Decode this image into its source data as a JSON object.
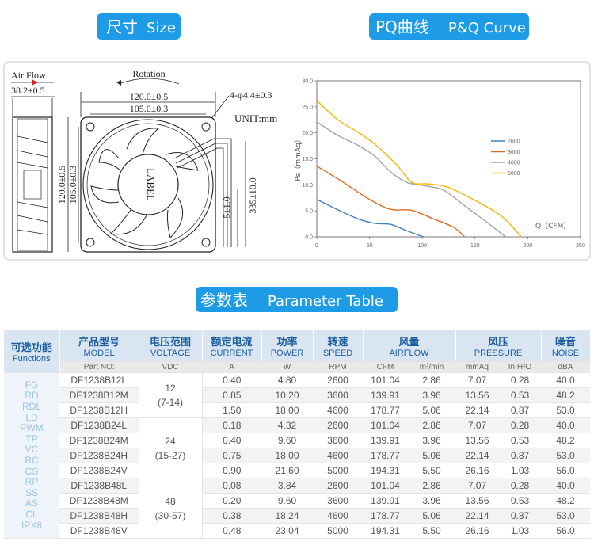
{
  "size_badge": {
    "cn": "尺寸",
    "en": "Size"
  },
  "pq_badge": {
    "cn": "PQ曲线",
    "en": "P&Q Curve"
  },
  "table_badge": {
    "cn": "参数表",
    "en": "Parameter Table"
  },
  "drawing": {
    "air_flow": "Air Flow",
    "depth": "38.2±0.5",
    "rotation": "Rotation",
    "outer_width": "120.0±0.5",
    "hole_width": "105.0±0.3",
    "holes": "4-φ4.4±0.3",
    "unit": "UNIT:mm",
    "outer_height": "120.0±0.5",
    "hole_height": "105.0±0.3",
    "label": "LABEL",
    "wire_tip": "5±1.0",
    "wire_length": "335±10.0"
  },
  "pq_chart": {
    "type": "line",
    "x_label": "Q（CFM）",
    "y_label": "Ps（mmAq）",
    "xlim": [
      0,
      250
    ],
    "ylim": [
      0,
      30
    ],
    "xticks": [
      0,
      50,
      100,
      150,
      200,
      250
    ],
    "yticks": [
      {
        "value": 0,
        "label": "0.0"
      },
      {
        "value": 5,
        "label": "5.0"
      },
      {
        "value": 10,
        "label": "10.0"
      },
      {
        "value": 15,
        "label": "15.0"
      },
      {
        "value": 20,
        "label": "20.0"
      },
      {
        "value": 25,
        "label": "25.0"
      },
      {
        "value": 30,
        "label": "30.0"
      }
    ],
    "series": [
      {
        "name": "2600",
        "color": "#3d7fc4",
        "x": [
          0,
          20,
          40,
          55,
          70,
          85,
          101
        ],
        "values": [
          7.2,
          5.2,
          3.4,
          2.6,
          2.4,
          1.2,
          0
        ]
      },
      {
        "name": "3600",
        "color": "#e0691f",
        "x": [
          0,
          25,
          50,
          70,
          90,
          110,
          130,
          140
        ],
        "values": [
          13.6,
          10.5,
          7.2,
          5.3,
          5.1,
          3.5,
          1.8,
          0
        ]
      },
      {
        "name": "4600",
        "color": "#a3a3a3",
        "x": [
          0,
          20,
          40,
          55,
          70,
          85,
          100,
          120,
          140,
          160,
          179
        ],
        "values": [
          22.1,
          19.5,
          17.5,
          15.5,
          12.5,
          10.5,
          9.9,
          9,
          6,
          3,
          0
        ]
      },
      {
        "name": "5000",
        "color": "#f5b400",
        "x": [
          0,
          20,
          40,
          55,
          75,
          90,
          105,
          125,
          150,
          175,
          194
        ],
        "values": [
          26.2,
          22.5,
          20,
          17.8,
          14,
          10.5,
          10.2,
          9.5,
          7,
          4,
          0
        ]
      }
    ]
  },
  "table": {
    "header": [
      {
        "cn": "可选功能",
        "en": "Functions"
      },
      {
        "cn": "产品型号",
        "en": "MODEL"
      },
      {
        "cn": "电压范围",
        "en": "VOLTAGE"
      },
      {
        "cn": "额定电流",
        "en": "CURRENT"
      },
      {
        "cn": "功率",
        "en": "POWER"
      },
      {
        "cn": "转速",
        "en": "SPEED"
      },
      {
        "cn": "风量",
        "en": "AIRFLOW"
      },
      {
        "cn": "风压",
        "en": "PRESSURE"
      },
      {
        "cn": "噪音",
        "en": "NOISE"
      }
    ],
    "units": [
      "Part NO:",
      "VDC",
      "A",
      "W",
      "RPM",
      "CFM",
      "m³/min",
      "mmAq",
      "In H²O",
      "dBA"
    ],
    "functions": [
      "FG",
      "RD",
      "RDL",
      "LD",
      "PWM",
      "TP",
      "VC",
      "RC",
      "CS",
      "RP",
      "SS",
      "AS",
      "CL",
      "IPX8"
    ],
    "groups": [
      {
        "voltage": "12",
        "range": "(7-14)",
        "rows": [
          [
            "DF1238B12L",
            "0.40",
            "4.80",
            "2600",
            "101.04",
            "2.86",
            "7.07",
            "0.28",
            "40.0"
          ],
          [
            "DF1238B12M",
            "0.85",
            "10.20",
            "3600",
            "139.91",
            "3.96",
            "13.56",
            "0.53",
            "48.2"
          ],
          [
            "DF1238B12H",
            "1.50",
            "18.00",
            "4600",
            "178.77",
            "5.06",
            "22.14",
            "0.87",
            "53.0"
          ]
        ]
      },
      {
        "voltage": "24",
        "range": "(15-27)",
        "rows": [
          [
            "DF1238B24L",
            "0.18",
            "4.32",
            "2600",
            "101.04",
            "2.86",
            "7.07",
            "0.28",
            "40.0"
          ],
          [
            "DF1238B24M",
            "0.40",
            "9.60",
            "3600",
            "139.91",
            "3.96",
            "13.56",
            "0.53",
            "48.2"
          ],
          [
            "DF1238B24H",
            "0.75",
            "18.00",
            "4600",
            "178.77",
            "5.06",
            "22.14",
            "0.87",
            "53.0"
          ],
          [
            "DF1238B24V",
            "0.90",
            "21.60",
            "5000",
            "194.31",
            "5.50",
            "26.16",
            "1.03",
            "56.0"
          ]
        ]
      },
      {
        "voltage": "48",
        "range": "(30-57)",
        "rows": [
          [
            "DF1238B48L",
            "0.08",
            "3.84",
            "2600",
            "101.04",
            "2.86",
            "7.07",
            "0.28",
            "40.0"
          ],
          [
            "DF1238B48M",
            "0.20",
            "9.60",
            "3600",
            "139.91",
            "3.96",
            "13.56",
            "0.53",
            "48.2"
          ],
          [
            "DF1238B48H",
            "0.38",
            "18.24",
            "4600",
            "178.77",
            "5.06",
            "22.14",
            "0.87",
            "53.0"
          ],
          [
            "DF1238B48V",
            "0.48",
            "23.04",
            "5000",
            "194.31",
            "5.50",
            "26.16",
            "1.03",
            "56.0"
          ]
        ]
      }
    ]
  }
}
